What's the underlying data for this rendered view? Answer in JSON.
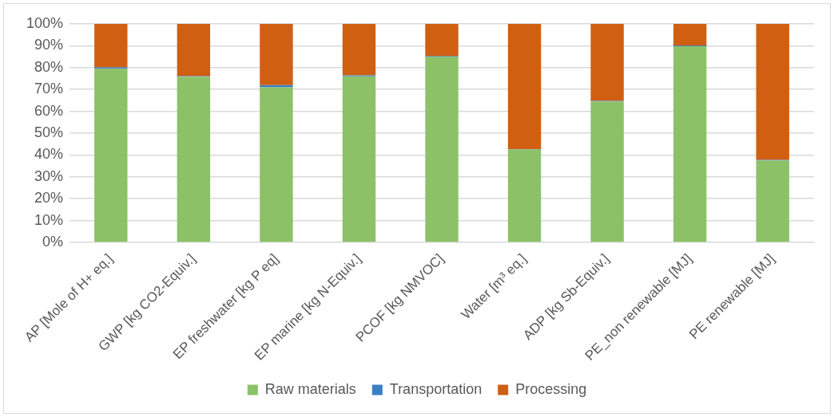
{
  "chart_data": {
    "type": "bar",
    "stacked": true,
    "categories": [
      "AP [Mole of H+ eq.]",
      "GWP [kg CO2-Equiv.]",
      "EP freshwater [kg P eq]",
      "EP marine [kg N-Equiv.]",
      "PCOF [kg NMVOC]",
      "Water [m³ eq.]",
      "ADP [kg Sb-Equiv.]",
      "PE_non renewable [MJ]",
      "PE renewable [MJ]"
    ],
    "series": [
      {
        "name": "Raw materials",
        "color": "#8cc168",
        "values": [
          79.5,
          75.8,
          71,
          76,
          85,
          42.5,
          64.5,
          89.8,
          37.5
        ]
      },
      {
        "name": "Transportation",
        "color": "#3b7fc4",
        "values": [
          0.6,
          0.3,
          1,
          0.5,
          0.3,
          0.2,
          0.3,
          0.3,
          0.3
        ]
      },
      {
        "name": "Processing",
        "color": "#d15f12",
        "values": [
          19.9,
          23.9,
          28,
          23.5,
          14.7,
          57.3,
          35.2,
          9.9,
          62.2
        ]
      }
    ],
    "ylim": [
      0,
      100
    ],
    "yticks": [
      {
        "value": 0,
        "label": "0%"
      },
      {
        "value": 10,
        "label": "10%"
      },
      {
        "value": 20,
        "label": "20%"
      },
      {
        "value": 30,
        "label": "30%"
      },
      {
        "value": 40,
        "label": "40%"
      },
      {
        "value": 50,
        "label": "50%"
      },
      {
        "value": 60,
        "label": "60%"
      },
      {
        "value": 70,
        "label": "70%"
      },
      {
        "value": 80,
        "label": "80%"
      },
      {
        "value": 90,
        "label": "90%"
      },
      {
        "value": 100,
        "label": "100%"
      }
    ],
    "grid": "y",
    "legend": "bottom"
  }
}
